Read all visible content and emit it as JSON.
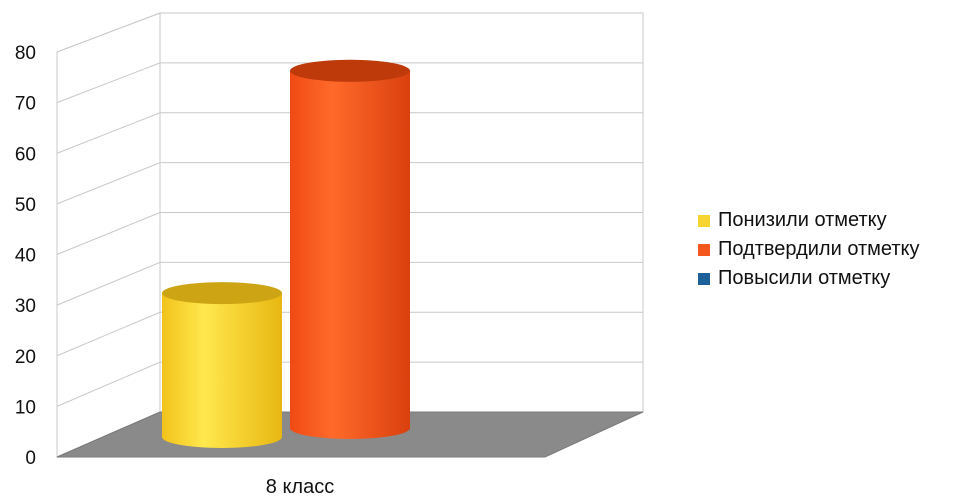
{
  "chart_data": {
    "type": "bar",
    "style": "3d-cylinder",
    "categories": [
      "8 класс"
    ],
    "series": [
      {
        "name": "Понизили отметку",
        "values": [
          29
        ],
        "color": "#F7D531"
      },
      {
        "name": "Подтвердили отметку",
        "values": [
          72
        ],
        "color": "#F5581E"
      },
      {
        "name": "Повысили отметку",
        "values": [
          0
        ],
        "color": "#1C6199"
      }
    ],
    "ylim": [
      0,
      80
    ],
    "yticks": [
      0,
      10,
      20,
      30,
      40,
      50,
      60,
      70,
      80
    ],
    "title": "",
    "xlabel": "",
    "ylabel": "",
    "grid": true,
    "legend_position": "right"
  }
}
